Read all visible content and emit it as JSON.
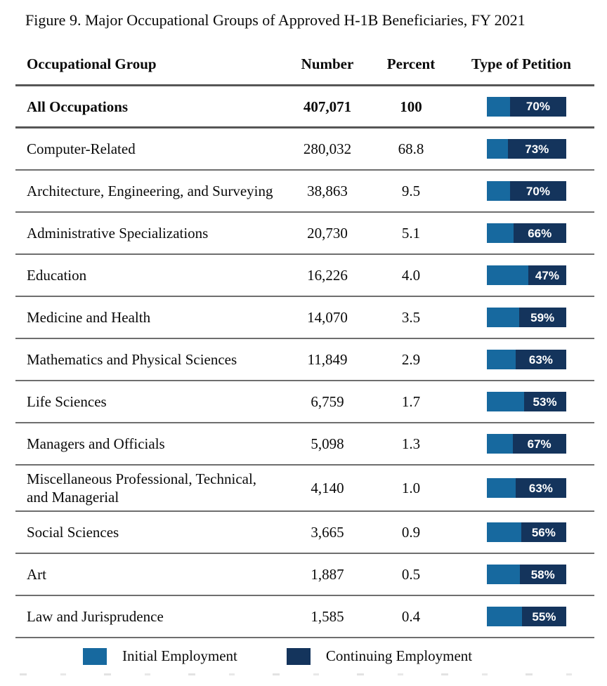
{
  "figure": {
    "title": "Figure 9. Major Occupational Groups of Approved H-1B Beneficiaries, FY 2021"
  },
  "table": {
    "headers": {
      "group": "Occupational Group",
      "number": "Number",
      "percent": "Percent",
      "petition": "Type of Petition"
    },
    "rows": [
      {
        "group": "All Occupations",
        "number": "407,071",
        "percent": "100",
        "continuing_label": "70%",
        "initial_pct": 30,
        "continuing_pct": 70,
        "bold": true
      },
      {
        "group": "Computer-Related",
        "number": "280,032",
        "percent": "68.8",
        "continuing_label": "73%",
        "initial_pct": 27,
        "continuing_pct": 73,
        "bold": false
      },
      {
        "group": "Architecture, Engineering, and Surveying",
        "number": "38,863",
        "percent": "9.5",
        "continuing_label": "70%",
        "initial_pct": 30,
        "continuing_pct": 70,
        "bold": false
      },
      {
        "group": "Administrative Specializations",
        "number": "20,730",
        "percent": "5.1",
        "continuing_label": "66%",
        "initial_pct": 34,
        "continuing_pct": 66,
        "bold": false
      },
      {
        "group": "Education",
        "number": "16,226",
        "percent": "4.0",
        "continuing_label": "47%",
        "initial_pct": 53,
        "continuing_pct": 47,
        "bold": false
      },
      {
        "group": "Medicine and Health",
        "number": "14,070",
        "percent": "3.5",
        "continuing_label": "59%",
        "initial_pct": 41,
        "continuing_pct": 59,
        "bold": false
      },
      {
        "group": "Mathematics and Physical Sciences",
        "number": "11,849",
        "percent": "2.9",
        "continuing_label": "63%",
        "initial_pct": 37,
        "continuing_pct": 63,
        "bold": false
      },
      {
        "group": "Life Sciences",
        "number": "6,759",
        "percent": "1.7",
        "continuing_label": "53%",
        "initial_pct": 47,
        "continuing_pct": 53,
        "bold": false
      },
      {
        "group": "Managers and Officials",
        "number": "5,098",
        "percent": "1.3",
        "continuing_label": "67%",
        "initial_pct": 33,
        "continuing_pct": 67,
        "bold": false
      },
      {
        "group": "Miscellaneous Professional, Technical, and Managerial",
        "number": "4,140",
        "percent": "1.0",
        "continuing_label": "63%",
        "initial_pct": 37,
        "continuing_pct": 63,
        "bold": false
      },
      {
        "group": "Social Sciences",
        "number": "3,665",
        "percent": "0.9",
        "continuing_label": "56%",
        "initial_pct": 44,
        "continuing_pct": 56,
        "bold": false
      },
      {
        "group": "Art",
        "number": "1,887",
        "percent": "0.5",
        "continuing_label": "58%",
        "initial_pct": 42,
        "continuing_pct": 58,
        "bold": false
      },
      {
        "group": "Law and Jurisprudence",
        "number": "1,585",
        "percent": "0.4",
        "continuing_label": "55%",
        "initial_pct": 45,
        "continuing_pct": 55,
        "bold": false
      }
    ]
  },
  "legend": {
    "initial": "Initial Employment",
    "continuing": "Continuing Employment"
  },
  "colors": {
    "initial_blue": "#17699F",
    "continuing_navy": "#14345C",
    "bar_label_white": "#FFFFFF",
    "separator_gray": "#6E6E6E"
  },
  "chart_data": {
    "type": "table",
    "title": "Figure 9. Major Occupational Groups of Approved H-1B Beneficiaries, FY 2021",
    "columns": [
      "Occupational Group",
      "Number",
      "Percent",
      "Type of Petition"
    ],
    "bar_style": "100% stacked horizontal bar per row; continuing-employment share labeled in navy segment",
    "legend": [
      "Initial Employment",
      "Continuing Employment"
    ],
    "rows": [
      {
        "occupational_group": "All Occupations",
        "number": 407071,
        "percent": 100,
        "initial_employment_pct": 30,
        "continuing_employment_pct": 70
      },
      {
        "occupational_group": "Computer-Related",
        "number": 280032,
        "percent": 68.8,
        "initial_employment_pct": 27,
        "continuing_employment_pct": 73
      },
      {
        "occupational_group": "Architecture, Engineering, and Surveying",
        "number": 38863,
        "percent": 9.5,
        "initial_employment_pct": 30,
        "continuing_employment_pct": 70
      },
      {
        "occupational_group": "Administrative Specializations",
        "number": 20730,
        "percent": 5.1,
        "initial_employment_pct": 34,
        "continuing_employment_pct": 66
      },
      {
        "occupational_group": "Education",
        "number": 16226,
        "percent": 4.0,
        "initial_employment_pct": 53,
        "continuing_employment_pct": 47
      },
      {
        "occupational_group": "Medicine and Health",
        "number": 14070,
        "percent": 3.5,
        "initial_employment_pct": 41,
        "continuing_employment_pct": 59
      },
      {
        "occupational_group": "Mathematics and Physical Sciences",
        "number": 11849,
        "percent": 2.9,
        "initial_employment_pct": 37,
        "continuing_employment_pct": 63
      },
      {
        "occupational_group": "Life Sciences",
        "number": 6759,
        "percent": 1.7,
        "initial_employment_pct": 47,
        "continuing_employment_pct": 53
      },
      {
        "occupational_group": "Managers and Officials",
        "number": 5098,
        "percent": 1.3,
        "initial_employment_pct": 33,
        "continuing_employment_pct": 67
      },
      {
        "occupational_group": "Miscellaneous Professional, Technical, and Managerial",
        "number": 4140,
        "percent": 1.0,
        "initial_employment_pct": 37,
        "continuing_employment_pct": 63
      },
      {
        "occupational_group": "Social Sciences",
        "number": 3665,
        "percent": 0.9,
        "initial_employment_pct": 44,
        "continuing_employment_pct": 56
      },
      {
        "occupational_group": "Art",
        "number": 1887,
        "percent": 0.5,
        "initial_employment_pct": 42,
        "continuing_employment_pct": 58
      },
      {
        "occupational_group": "Law and Jurisprudence",
        "number": 1585,
        "percent": 0.4,
        "initial_employment_pct": 45,
        "continuing_employment_pct": 55
      }
    ]
  }
}
